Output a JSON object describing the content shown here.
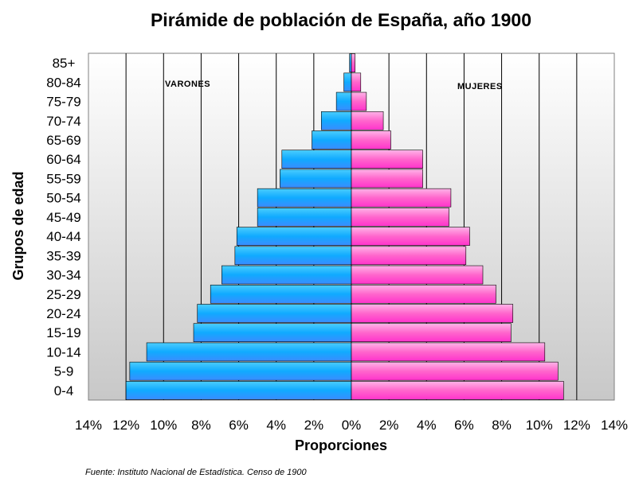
{
  "chart_data": {
    "type": "bar",
    "orientation": "horizontal-population-pyramid",
    "title": "Pirámide de población de España, año 1900",
    "xlabel": "Proporciones",
    "ylabel": "Grupos de edad",
    "source": "Fuente: Instituto Nacional de Estadística. Censo de 1900",
    "annotations": {
      "left": "VARONES",
      "right": "MUJERES"
    },
    "xlim": [
      -14,
      14
    ],
    "x_ticks": [
      -14,
      -12,
      -10,
      -8,
      -6,
      -4,
      -2,
      0,
      2,
      4,
      6,
      8,
      10,
      12,
      14
    ],
    "x_tick_labels": [
      "14%",
      "12%",
      "10%",
      "8%",
      "6%",
      "4%",
      "2%",
      "0%",
      "2%",
      "4%",
      "6%",
      "8%",
      "10%",
      "12%",
      "14%"
    ],
    "grid": true,
    "categories": [
      "0-4",
      "5-9",
      "10-14",
      "15-19",
      "20-24",
      "25-29",
      "30-34",
      "35-39",
      "40-44",
      "45-49",
      "50-54",
      "55-59",
      "60-64",
      "65-69",
      "70-74 ",
      "75-79",
      "80-84",
      "85+"
    ],
    "series": [
      {
        "side": "left",
        "color": "#1fb8ff",
        "values": [
          12.0,
          11.8,
          10.9,
          8.4,
          8.2,
          7.5,
          6.9,
          6.2,
          6.1,
          5.0,
          5.0,
          3.8,
          3.7,
          2.1,
          1.6,
          0.8,
          0.4,
          0.1
        ]
      },
      {
        "side": "right",
        "color": "#ff6fd0",
        "values": [
          11.3,
          11.0,
          10.3,
          8.5,
          8.6,
          7.7,
          7.0,
          6.1,
          6.3,
          5.2,
          5.3,
          3.8,
          3.8,
          2.1,
          1.7,
          0.8,
          0.5,
          0.2
        ]
      }
    ]
  }
}
